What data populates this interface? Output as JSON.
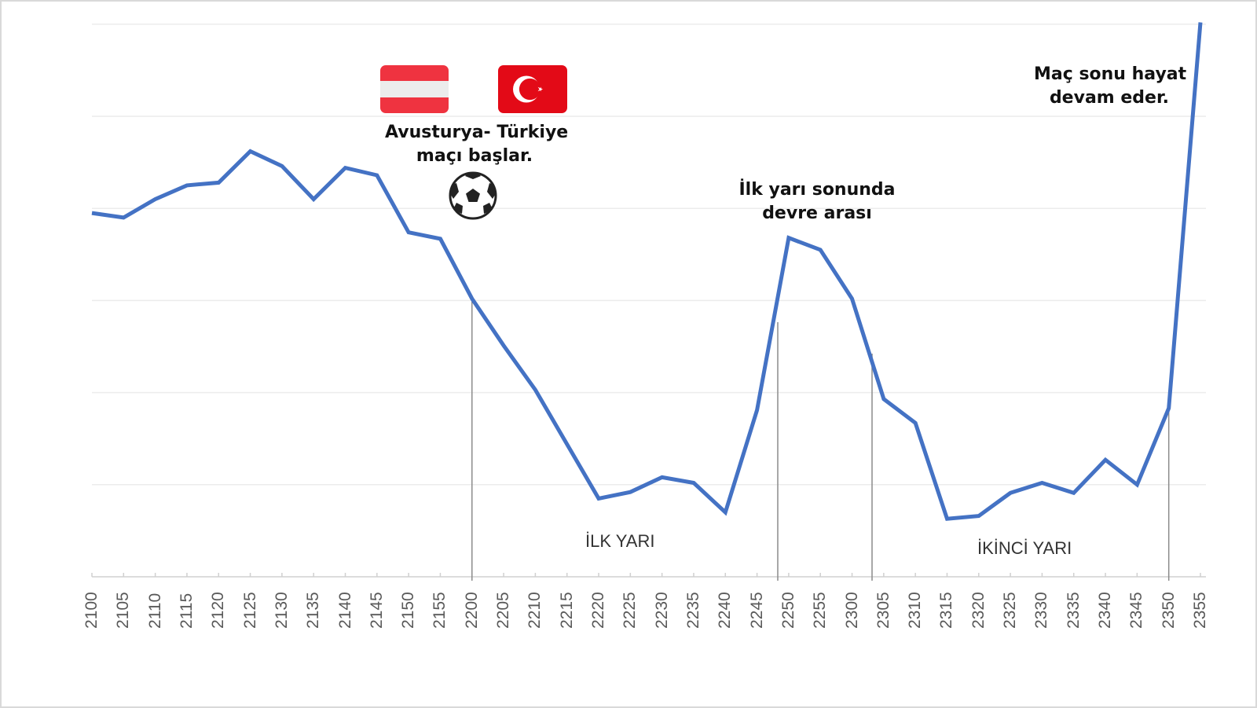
{
  "chart_data": {
    "type": "line",
    "title": "",
    "xlabel": "",
    "ylabel": "",
    "ylim": [
      0,
      6
    ],
    "grid": true,
    "legend": "none",
    "line_color": "#4472c4",
    "categories": [
      "2100",
      "2105",
      "2110",
      "2115",
      "2120",
      "2125",
      "2130",
      "2135",
      "2140",
      "2145",
      "2150",
      "2155",
      "2200",
      "2205",
      "2210",
      "2215",
      "2220",
      "2225",
      "2230",
      "2235",
      "2240",
      "2245",
      "2250",
      "2255",
      "2300",
      "2305",
      "2310",
      "2315",
      "2320",
      "2325",
      "2330",
      "2335",
      "2340",
      "2345",
      "2350",
      "2355"
    ],
    "series": [
      {
        "name": "",
        "values": [
          3.95,
          3.9,
          4.1,
          4.25,
          4.28,
          4.62,
          4.46,
          4.1,
          4.44,
          4.36,
          3.74,
          3.67,
          3.02,
          2.51,
          2.03,
          1.44,
          0.85,
          0.92,
          1.08,
          1.02,
          0.7,
          1.81,
          3.68,
          3.55,
          3.02,
          1.93,
          1.67,
          0.63,
          0.66,
          0.91,
          1.02,
          0.91,
          1.27,
          1.0,
          1.83,
          6.02
        ]
      }
    ],
    "annotations": [
      {
        "text": "Avusturya- Türkiye\nmaçı başlar.",
        "near": "2200"
      },
      {
        "text": "İlk yarı sonunda\ndevre arası",
        "near": "2250"
      },
      {
        "text": "Maç sonu hayat\ndevam eder.",
        "near": "2355"
      },
      {
        "text": "İLK YARI",
        "type": "phase"
      },
      {
        "text": "İKİNCİ YARI",
        "type": "phase"
      }
    ],
    "markers": [
      "2200",
      "2248",
      "2303",
      "2350"
    ]
  },
  "annotations": {
    "kickoff_line1": "Avusturya- Türkiye",
    "kickoff_line2": "maçı başlar.",
    "halftime_line1": "İlk yarı sonunda",
    "halftime_line2": "devre arası",
    "end_line1": "Maç sonu hayat",
    "end_line2": "devam eder.",
    "first_half": "İLK YARI",
    "second_half": "İKİNCİ YARI"
  },
  "icons": {
    "flag_austria": "austria-flag-icon",
    "flag_turkey": "turkey-flag-icon",
    "ball": "soccer-ball-icon"
  },
  "colors": {
    "line": "#4472c4",
    "grid": "#ececec",
    "marker": "#8c8c8c",
    "austria_red": "#ef3340",
    "turkey_red": "#e30a17"
  }
}
